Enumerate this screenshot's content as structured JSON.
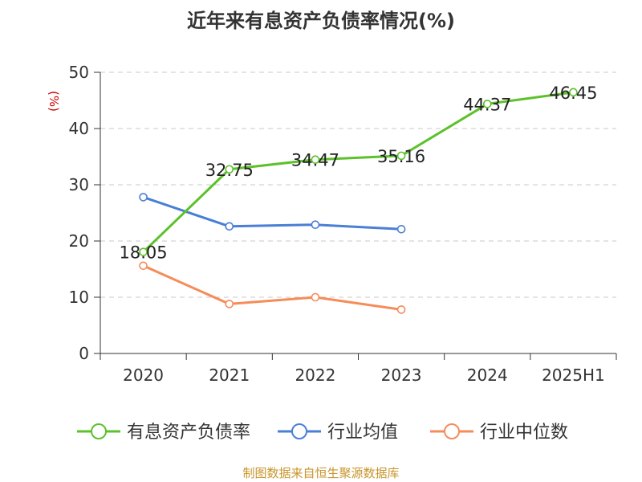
{
  "chart_data": {
    "type": "line",
    "title": "近年来有息资产负债率情况(%)",
    "ylabel": "(%)",
    "xlabel": "",
    "categories": [
      "2020",
      "2021",
      "2022",
      "2023",
      "2024",
      "2025H1"
    ],
    "ylim": [
      0,
      50
    ],
    "yticks": [
      0,
      10,
      20,
      30,
      40,
      50
    ],
    "grid": "horizontal-dashed",
    "legend_position": "bottom",
    "series": [
      {
        "name": "有息资产负债率",
        "color": "#5cc12a",
        "values": [
          18.05,
          32.75,
          34.47,
          35.16,
          44.37,
          46.45
        ],
        "labels": [
          "18.05",
          "32.75",
          "34.47",
          "35.16",
          "44.37",
          "46.45"
        ]
      },
      {
        "name": "行业均值",
        "color": "#4a7fd6",
        "values": [
          27.8,
          22.6,
          22.9,
          22.1,
          null,
          null
        ]
      },
      {
        "name": "行业中位数",
        "color": "#f58c59",
        "values": [
          15.6,
          8.8,
          10.0,
          7.8,
          null,
          null
        ]
      }
    ]
  },
  "footer": {
    "text": "制图数据来自恒生聚源数据库",
    "color": "#c8952b"
  },
  "ylabel_color": "#cc0000"
}
